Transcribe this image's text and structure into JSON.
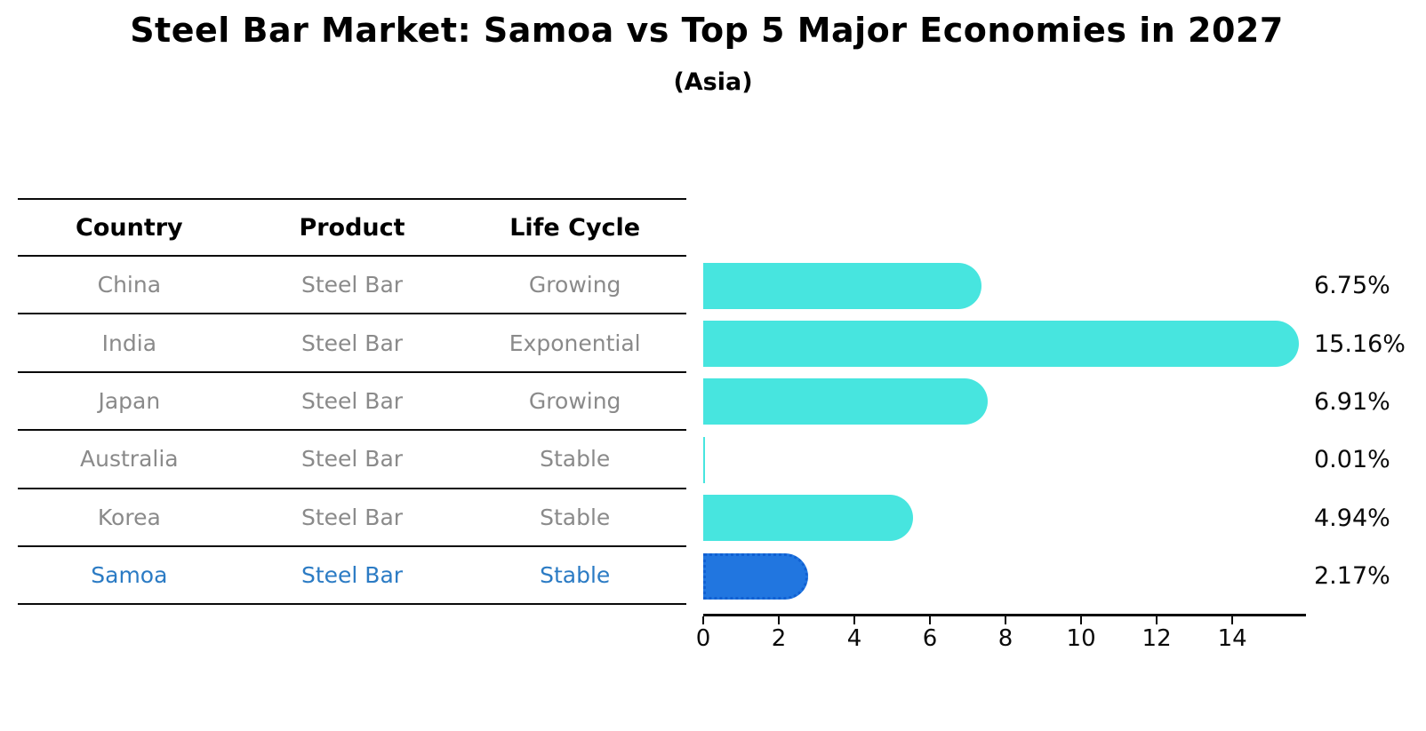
{
  "title": "Steel Bar Market: Samoa vs Top 5 Major Economies in 2027",
  "subtitle": "(Asia)",
  "table": {
    "headers": [
      "Country",
      "Product",
      "Life Cycle"
    ],
    "rows": [
      {
        "country": "China",
        "product": "Steel Bar",
        "life_cycle": "Growing",
        "highlight": false
      },
      {
        "country": "India",
        "product": "Steel Bar",
        "life_cycle": "Exponential",
        "highlight": false
      },
      {
        "country": "Japan",
        "product": "Steel Bar",
        "life_cycle": "Growing",
        "highlight": false
      },
      {
        "country": "Australia",
        "product": "Steel Bar",
        "life_cycle": "Stable",
        "highlight": false
      },
      {
        "country": "Korea",
        "product": "Steel Bar",
        "life_cycle": "Stable",
        "highlight": false
      },
      {
        "country": "Samoa",
        "product": "Steel Bar",
        "life_cycle": "Stable",
        "highlight": true
      }
    ]
  },
  "chart_data": {
    "type": "bar",
    "orientation": "horizontal",
    "title": "Steel Bar Market: Samoa vs Top 5 Major Economies in 2027",
    "subtitle": "(Asia)",
    "categories": [
      "China",
      "India",
      "Japan",
      "Australia",
      "Korea",
      "Samoa"
    ],
    "values": [
      6.75,
      15.16,
      6.91,
      0.01,
      4.94,
      2.17
    ],
    "value_labels": [
      "6.75%",
      "15.16%",
      "6.91%",
      "0.01%",
      "4.94%",
      "2.17%"
    ],
    "x_ticks": [
      0,
      2,
      4,
      6,
      8,
      10,
      12,
      14
    ],
    "x_tick_labels": [
      "0",
      "2",
      "4",
      "6",
      "8",
      "10",
      "12",
      "14"
    ],
    "xlim": [
      0,
      15.95
    ],
    "grid": false,
    "legend": null,
    "colors": {
      "bar": "#47e5df",
      "highlight_bar": "#2176e0",
      "highlight_bar_edge": "#1160d2",
      "highlight_text": "#2b7bc4",
      "table_text": "#8a8a8a",
      "axis": "#0a0a0a"
    },
    "highlight_index": 5
  }
}
